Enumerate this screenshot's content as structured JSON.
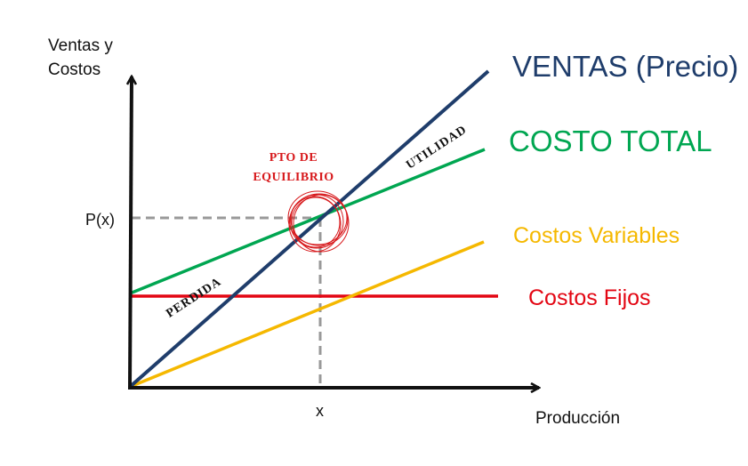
{
  "axes": {
    "y_label_line1": "Ventas y",
    "y_label_line2": "Costos",
    "x_label": "Producción",
    "y_tick": "P(x)",
    "x_tick": "x"
  },
  "lines": {
    "ventas": {
      "label": "VENTAS (Precio)",
      "color": "#1f3d6b"
    },
    "costo_total": {
      "label": "COSTO TOTAL",
      "color": "#00a651"
    },
    "costos_variables": {
      "label": "Costos Variables",
      "color": "#f5b800"
    },
    "costos_fijos": {
      "label": "Costos Fijos",
      "color": "#e30613"
    }
  },
  "annotations": {
    "bep_line1": "PTO DE",
    "bep_line2": "EQUILIBRIO",
    "bep_color": "#d7191c",
    "perdida": "PERDIDA",
    "utilidad": "UTILIDAD"
  },
  "colors": {
    "axis": "#111111",
    "guide": "#999999"
  }
}
